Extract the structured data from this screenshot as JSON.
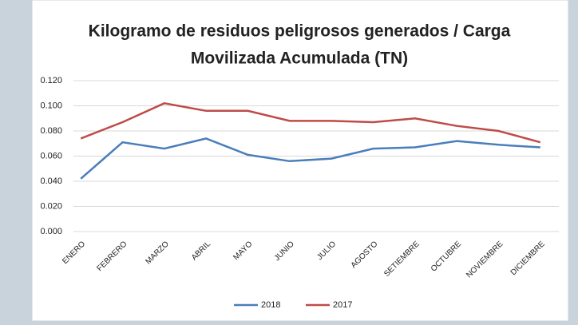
{
  "chart_data": {
    "type": "line",
    "title_lines": [
      "Kilogramo de residuos peligrosos generados / Carga",
      "Movilizada Acumulada (TN)"
    ],
    "categories": [
      "ENERO",
      "FEBRERO",
      "MARZO",
      "ABRIL",
      "MAYO",
      "JUNIO",
      "JULIO",
      "AGOSTO",
      "SETIEMBRE",
      "OCTUBRE",
      "NOVIEMBRE",
      "DICIEMBRE"
    ],
    "series": [
      {
        "name": "2018",
        "color": "#4a7ebb",
        "values": [
          0.042,
          0.071,
          0.066,
          0.074,
          0.061,
          0.056,
          0.058,
          0.066,
          0.067,
          0.072,
          0.069,
          0.067
        ]
      },
      {
        "name": "2017",
        "color": "#be4b48",
        "values": [
          0.074,
          0.087,
          0.102,
          0.096,
          0.096,
          0.088,
          0.088,
          0.087,
          0.09,
          0.084,
          0.08,
          0.071
        ]
      }
    ],
    "ylim": [
      0,
      0.12
    ],
    "yticks": [
      {
        "value": 0,
        "label": "0.000"
      },
      {
        "value": 0.02,
        "label": "0.020"
      },
      {
        "value": 0.04,
        "label": "0.040"
      },
      {
        "value": 0.06,
        "label": "0.060"
      },
      {
        "value": 0.08,
        "label": "0.080"
      },
      {
        "value": 0.1,
        "label": "0.100"
      },
      {
        "value": 0.12,
        "label": "0.120"
      }
    ],
    "grid": true,
    "legend": "bottom"
  }
}
